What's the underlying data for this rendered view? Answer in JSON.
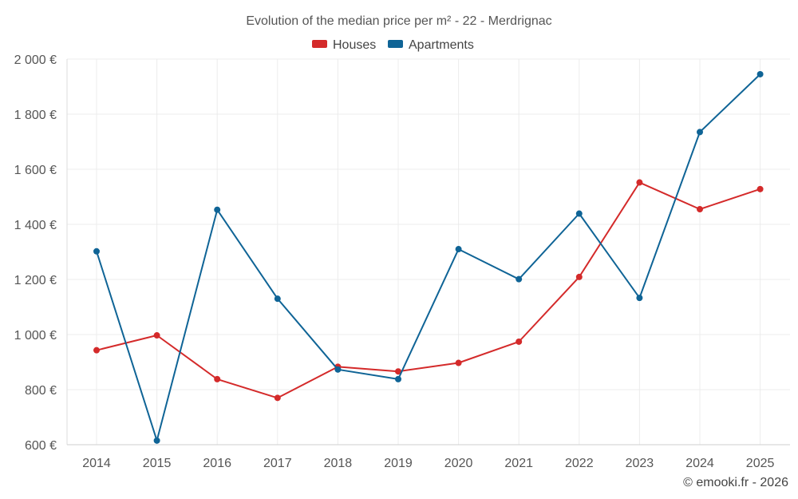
{
  "chart_data": {
    "type": "line",
    "title": "Evolution of the median price per m² - 22 - Merdrignac",
    "categories": [
      "2014",
      "2015",
      "2016",
      "2017",
      "2018",
      "2019",
      "2020",
      "2021",
      "2022",
      "2023",
      "2024",
      "2025"
    ],
    "series": [
      {
        "name": "Houses",
        "color": "#d42a2a",
        "values": [
          943,
          997,
          838,
          770,
          883,
          866,
          897,
          974,
          1209,
          1552,
          1455,
          1528
        ]
      },
      {
        "name": "Apartments",
        "color": "#0f6496",
        "values": [
          1302,
          615,
          1453,
          1130,
          873,
          838,
          1310,
          1201,
          1439,
          1133,
          1735,
          1945
        ]
      }
    ],
    "xlabel": "",
    "ylabel": "",
    "ylim": [
      600,
      2000
    ],
    "yticks": [
      600,
      800,
      1000,
      1200,
      1400,
      1600,
      1800,
      2000
    ],
    "ytick_labels": [
      "600 €",
      "800 €",
      "1 000 €",
      "1 200 €",
      "1 400 €",
      "1 600 €",
      "1 800 €",
      "2 000 €"
    ],
    "grid": true,
    "legend_position": "top-center"
  },
  "credit": "© emooki.fr - 2026"
}
